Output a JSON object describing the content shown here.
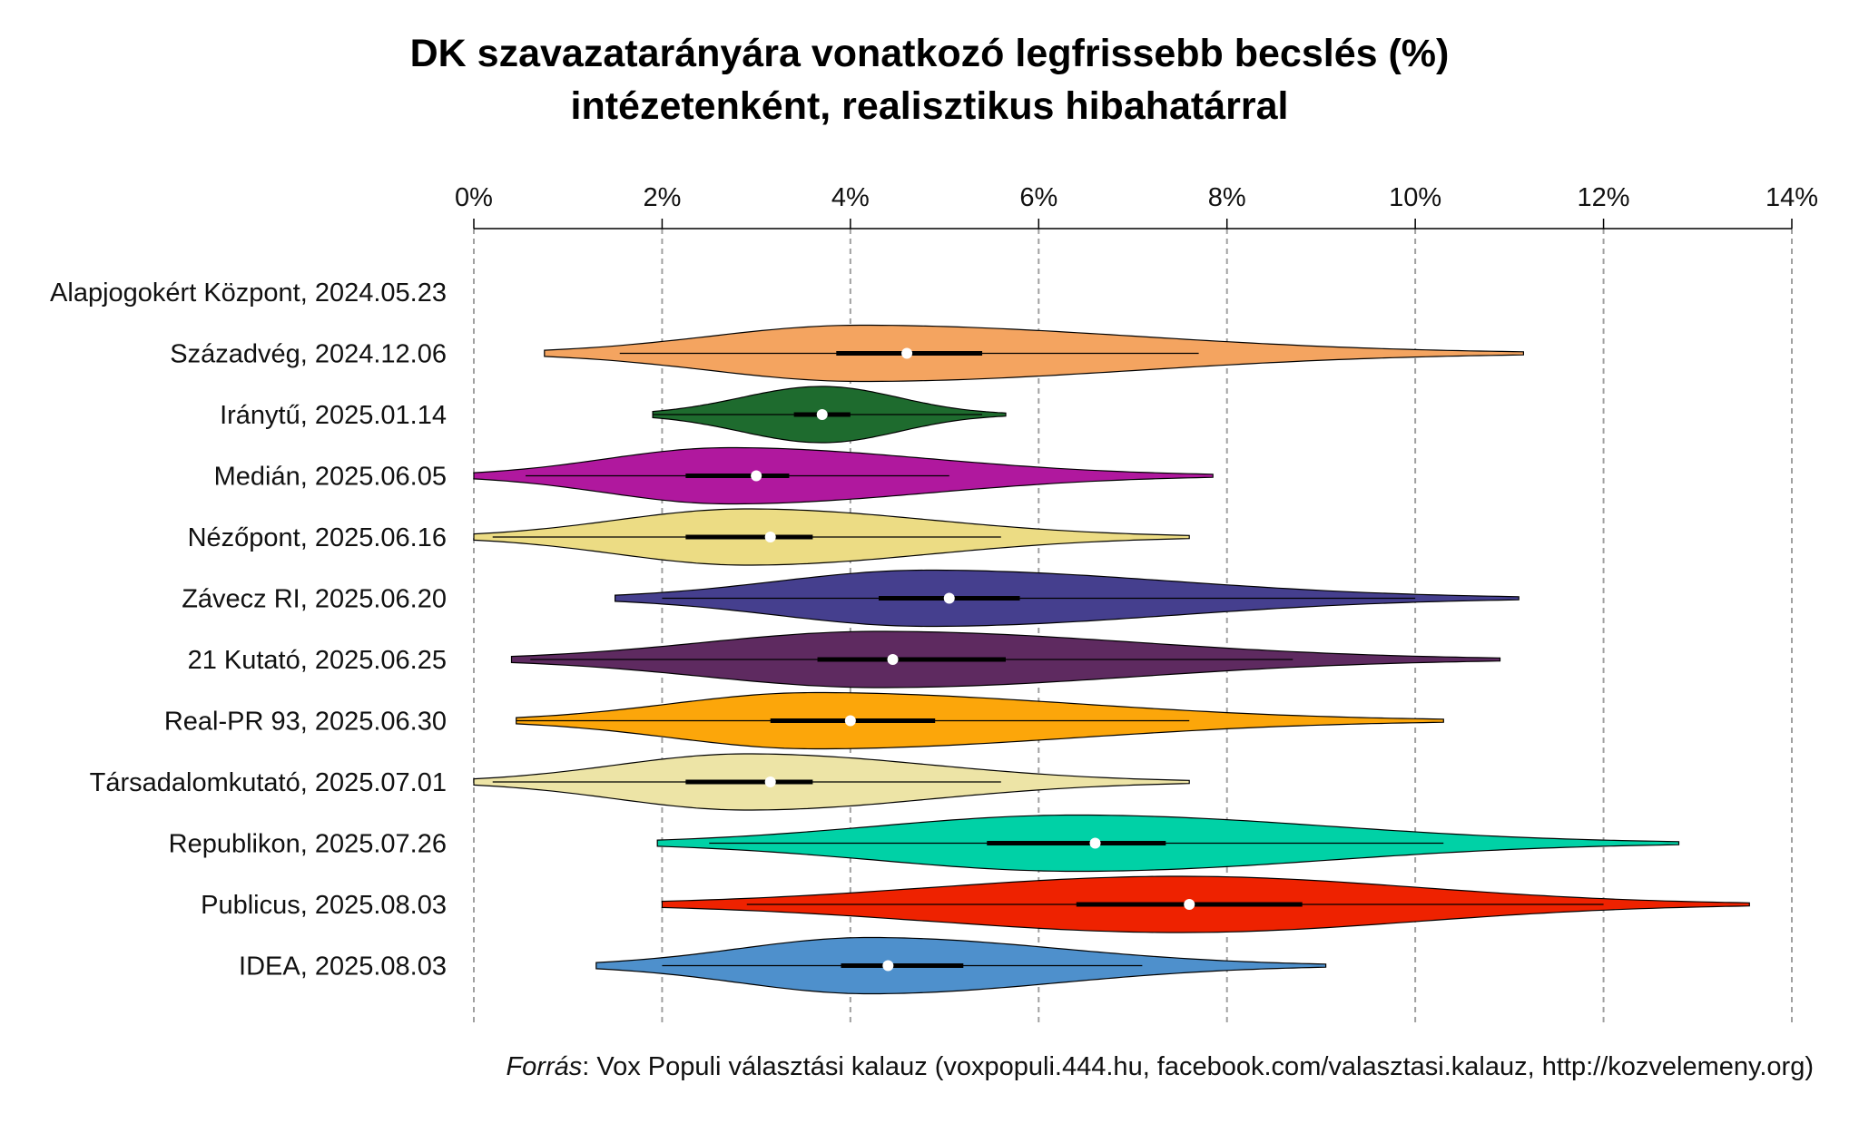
{
  "chart_data": {
    "type": "violin",
    "title_line1": "DK szavazatarányára vonatkozó legfrissebb becslés (%)",
    "title_line2": "intézetenként, realisztikus hibahatárral",
    "xlim": [
      0,
      14
    ],
    "x_ticks": [
      0,
      2,
      4,
      6,
      8,
      10,
      12,
      14
    ],
    "x_tick_labels": [
      "0%",
      "2%",
      "4%",
      "6%",
      "8%",
      "10%",
      "12%",
      "14%"
    ],
    "grid": "vertical dashed",
    "series": [
      {
        "name": "Alapjogokért Központ, 2024.05.23",
        "color": null,
        "min": null,
        "max": null,
        "median": null,
        "q1": null,
        "q3": null,
        "w_lo": null,
        "w_hi": null,
        "mode": null
      },
      {
        "name": "Századvég, 2024.12.06",
        "color": "#f4a460",
        "min": 0.75,
        "max": 11.15,
        "median": 4.6,
        "q1": 3.85,
        "q3": 5.4,
        "w_lo": 1.55,
        "w_hi": 7.7,
        "mode": 4.1
      },
      {
        "name": "Iránytű, 2025.01.14",
        "color": "#1e6b2e",
        "min": 1.9,
        "max": 5.65,
        "median": 3.7,
        "q1": 3.4,
        "q3": 4.0,
        "w_lo": 1.9,
        "w_hi": 5.4,
        "mode": 3.7
      },
      {
        "name": "Medián, 2025.06.05",
        "color": "#b0189e",
        "min": 0.0,
        "max": 7.85,
        "median": 3.0,
        "q1": 2.25,
        "q3": 3.35,
        "w_lo": 0.55,
        "w_hi": 5.05,
        "mode": 2.7
      },
      {
        "name": "Nézőpont, 2025.06.16",
        "color": "#ecdc84",
        "min": 0.0,
        "max": 7.6,
        "median": 3.15,
        "q1": 2.25,
        "q3": 3.6,
        "w_lo": 0.2,
        "w_hi": 5.6,
        "mode": 2.9
      },
      {
        "name": "Závecz RI, 2025.06.20",
        "color": "#453f8e",
        "min": 1.5,
        "max": 11.1,
        "median": 5.05,
        "q1": 4.3,
        "q3": 5.8,
        "w_lo": 2.0,
        "w_hi": 10.0,
        "mode": 4.8
      },
      {
        "name": "21 Kutató, 2025.06.25",
        "color": "#5e2a60",
        "min": 0.4,
        "max": 10.9,
        "median": 4.45,
        "q1": 3.65,
        "q3": 5.65,
        "w_lo": 0.6,
        "w_hi": 8.7,
        "mode": 4.3
      },
      {
        "name": "Real-PR 93, 2025.06.30",
        "color": "#fca60a",
        "min": 0.45,
        "max": 10.3,
        "median": 4.0,
        "q1": 3.15,
        "q3": 4.9,
        "w_lo": 0.45,
        "w_hi": 7.6,
        "mode": 3.6
      },
      {
        "name": "Társadalomkutató, 2025.07.01",
        "color": "#ede4a6",
        "min": 0.0,
        "max": 7.6,
        "median": 3.15,
        "q1": 2.25,
        "q3": 3.6,
        "w_lo": 0.2,
        "w_hi": 5.6,
        "mode": 2.9
      },
      {
        "name": "Republikon, 2025.07.26",
        "color": "#00d1a6",
        "min": 1.95,
        "max": 12.8,
        "median": 6.6,
        "q1": 5.45,
        "q3": 7.35,
        "w_lo": 2.5,
        "w_hi": 10.3,
        "mode": 6.4
      },
      {
        "name": "Publicus, 2025.08.03",
        "color": "#ee2200",
        "min": 2.0,
        "max": 13.55,
        "median": 7.6,
        "q1": 6.4,
        "q3": 8.8,
        "w_lo": 2.9,
        "w_hi": 12.0,
        "mode": 7.5
      },
      {
        "name": "IDEA, 2025.08.03",
        "color": "#4e90cc",
        "min": 1.3,
        "max": 9.05,
        "median": 4.4,
        "q1": 3.9,
        "q3": 5.2,
        "w_lo": 2.0,
        "w_hi": 7.1,
        "mode": 4.2
      }
    ]
  },
  "source": {
    "label": "Forrás",
    "text": ": Vox Populi választási kalauz (voxpopuli.444.hu, facebook.com/valasztasi.kalauz, http://kozvelemeny.org)"
  }
}
